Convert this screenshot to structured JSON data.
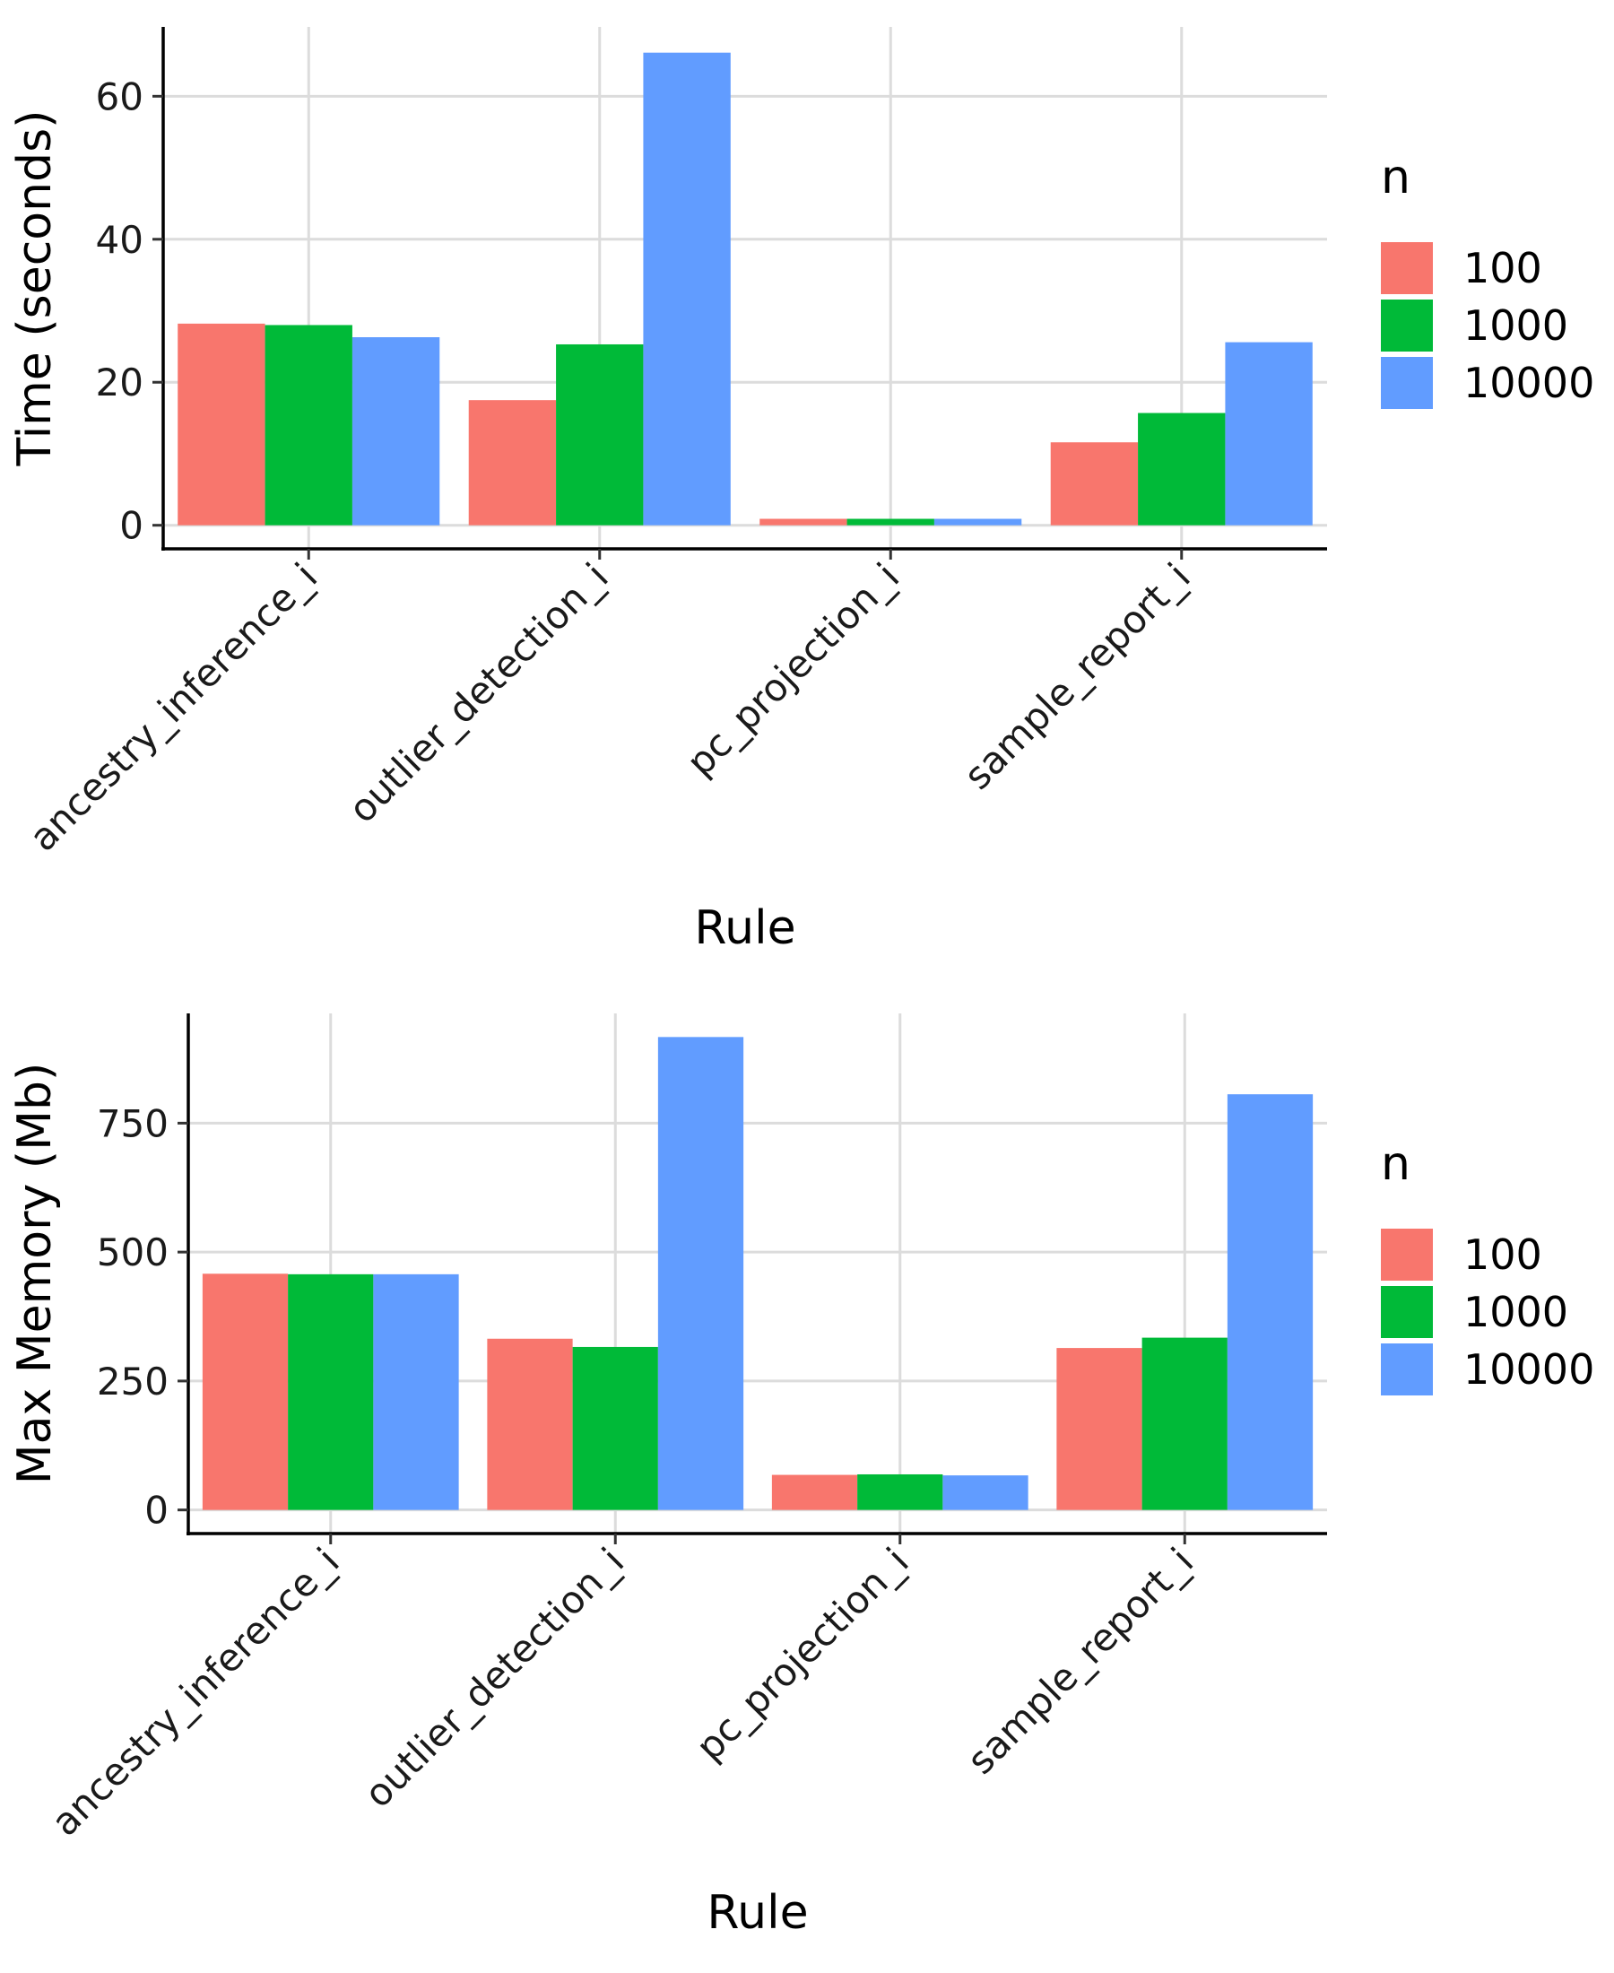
{
  "chart_data": [
    {
      "type": "bar",
      "categories": [
        "ancestry_inference_i",
        "outlier_detection_i",
        "pc_projection_i",
        "sample_report_i"
      ],
      "series": [
        {
          "name": "100",
          "color": "#F8766D",
          "values": [
            28.2,
            17.5,
            0.9,
            11.6
          ]
        },
        {
          "name": "1000",
          "color": "#00BA38",
          "values": [
            28.0,
            25.3,
            0.9,
            15.7
          ]
        },
        {
          "name": "10000",
          "color": "#619CFF",
          "values": [
            26.3,
            66.1,
            0.9,
            25.6
          ]
        }
      ],
      "xlabel": "Rule",
      "ylabel": "Time (seconds)",
      "yticks": [
        "0",
        "20",
        "40",
        "60"
      ],
      "ylim": [
        -3.3,
        69.7
      ],
      "legend_title": "n",
      "legend_position": "right",
      "grid": true
    },
    {
      "type": "bar",
      "categories": [
        "ancestry_inference_i",
        "outlier_detection_i",
        "pc_projection_i",
        "sample_report_i"
      ],
      "series": [
        {
          "name": "100",
          "color": "#F8766D",
          "values": [
            458,
            332,
            68,
            314
          ]
        },
        {
          "name": "1000",
          "color": "#00BA38",
          "values": [
            457,
            316,
            69,
            334
          ]
        },
        {
          "name": "10000",
          "color": "#619CFF",
          "values": [
            457,
            917,
            67,
            806
          ]
        }
      ],
      "xlabel": "Rule",
      "ylabel": "Max Memory (Mb)",
      "yticks": [
        "0",
        "250",
        "500",
        "750"
      ],
      "ylim": [
        -45.8,
        962.8
      ],
      "legend_title": "n",
      "legend_position": "right",
      "grid": true
    }
  ]
}
